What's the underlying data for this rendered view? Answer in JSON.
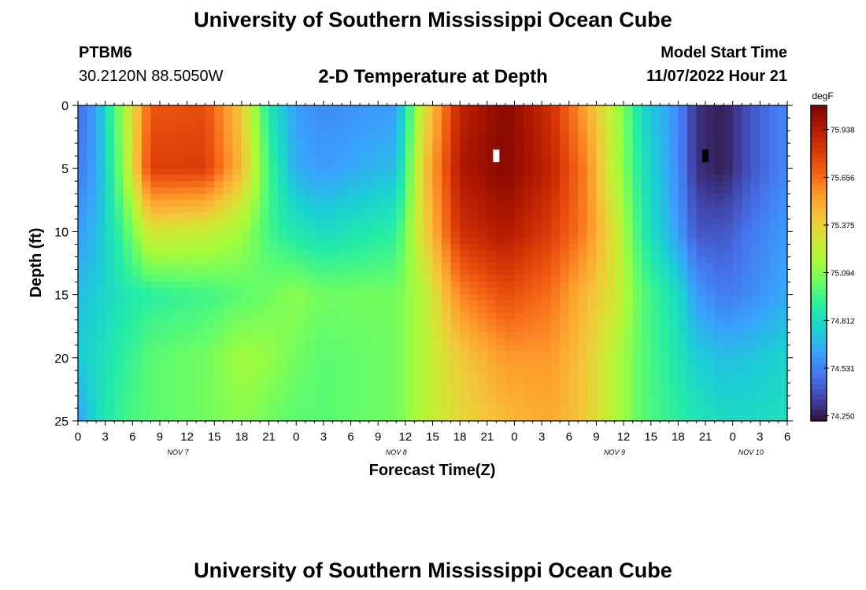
{
  "header": {
    "title": "University of Southern Mississippi Ocean Cube",
    "station_id": "PTBM6",
    "coordinates": "30.2120N  88.5050W",
    "subtitle": "2-D Temperature at Depth",
    "model_start_label": "Model Start Time",
    "model_start_value": "11/07/2022 Hour 21"
  },
  "footer": {
    "title": "University of Southern Mississippi Ocean Cube"
  },
  "chart_data": {
    "type": "heatmap",
    "title": "2-D Temperature at Depth",
    "xlabel": "Forecast Time(Z)",
    "ylabel": "Depth (ft)",
    "units": "degF",
    "y_ticks": [
      0,
      5,
      10,
      15,
      20,
      25
    ],
    "y_range": [
      0,
      25
    ],
    "x_ticks": [
      "0",
      "3",
      "6",
      "9",
      "12",
      "15",
      "18",
      "21",
      "0",
      "3",
      "6",
      "9",
      "12",
      "15",
      "18",
      "21",
      "0",
      "3",
      "6",
      "9",
      "12",
      "15",
      "18",
      "21",
      "0",
      "3",
      "6"
    ],
    "x_range_hours": [
      0,
      78
    ],
    "day_labels": [
      {
        "label": "NOV 7",
        "hour": 11
      },
      {
        "label": "NOV 8",
        "hour": 35
      },
      {
        "label": "NOV 9",
        "hour": 59
      },
      {
        "label": "NOV 10",
        "hour": 74
      }
    ],
    "colorbar": {
      "ticks": [
        "75.938",
        "75.656",
        "75.375",
        "75.094",
        "74.812",
        "74.531",
        "74.250"
      ],
      "min": 74.22,
      "max": 76.08,
      "colors": [
        "#30123b",
        "#4145ab",
        "#4675ed",
        "#39a2fc",
        "#1bcfd4",
        "#24eca6",
        "#61fc6c",
        "#a4fc3b",
        "#d1e834",
        "#f3c63a",
        "#fe9b2d",
        "#f36315",
        "#d93806",
        "#b11901",
        "#7a0402"
      ]
    },
    "depths_ft": [
      0,
      5,
      10,
      15,
      20,
      25
    ],
    "times_hours": [
      0,
      2,
      5,
      8,
      14,
      18,
      21,
      24,
      27,
      35,
      38,
      42,
      47,
      52,
      56,
      59,
      62,
      66,
      68,
      71,
      74,
      78
    ],
    "temperature_degF": [
      [
        74.45,
        74.62,
        75.15,
        75.72,
        75.75,
        75.4,
        74.85,
        74.6,
        74.55,
        74.6,
        75.3,
        75.9,
        76.05,
        75.85,
        75.5,
        75.2,
        74.8,
        74.55,
        74.3,
        74.25,
        74.4,
        74.55
      ],
      [
        74.5,
        74.62,
        75.1,
        75.8,
        75.8,
        75.45,
        74.95,
        74.65,
        74.6,
        74.7,
        75.4,
        75.95,
        76.05,
        75.9,
        75.6,
        75.2,
        74.85,
        74.55,
        74.3,
        74.25,
        74.4,
        74.55
      ],
      [
        74.6,
        74.68,
        74.95,
        75.3,
        75.25,
        75.15,
        74.95,
        74.85,
        74.8,
        74.9,
        75.35,
        75.85,
        75.95,
        75.8,
        75.6,
        75.3,
        74.9,
        74.6,
        74.4,
        74.4,
        74.5,
        74.6
      ],
      [
        74.7,
        74.75,
        74.85,
        74.9,
        74.95,
        75.0,
        75.05,
        75.1,
        75.05,
        75.05,
        75.2,
        75.6,
        75.75,
        75.65,
        75.45,
        75.3,
        75.0,
        74.8,
        74.6,
        74.5,
        74.55,
        74.65
      ],
      [
        74.75,
        74.8,
        74.9,
        75.0,
        75.05,
        75.15,
        75.12,
        75.05,
        75.0,
        75.05,
        75.2,
        75.4,
        75.55,
        75.55,
        75.4,
        75.2,
        75.0,
        74.85,
        74.75,
        74.7,
        74.72,
        74.78
      ],
      [
        74.6,
        74.8,
        74.95,
        75.0,
        75.05,
        75.1,
        75.05,
        75.0,
        75.0,
        75.05,
        75.2,
        75.35,
        75.45,
        75.5,
        75.4,
        75.2,
        75.0,
        74.9,
        74.85,
        74.8,
        74.8,
        74.82
      ]
    ],
    "markers": [
      {
        "hour": 46,
        "depth_ft": 4,
        "color": "#ffffff"
      },
      {
        "hour": 69,
        "depth_ft": 4,
        "color": "#000000"
      }
    ]
  }
}
